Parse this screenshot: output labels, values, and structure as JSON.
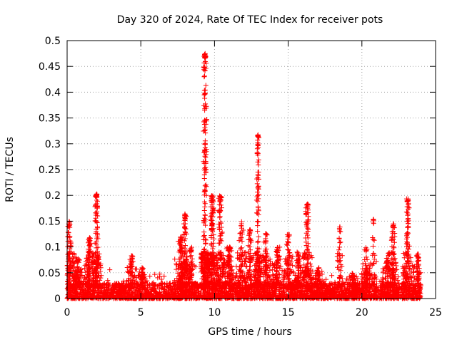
{
  "chart_data": {
    "type": "scatter",
    "title": "Day 320 of 2024, Rate Of TEC Index for receiver pots",
    "xlabel": "GPS time / hours",
    "ylabel": "ROTI / TECUs",
    "xlim": [
      0,
      25
    ],
    "ylim": [
      0,
      0.5
    ],
    "xticks": [
      0,
      5,
      10,
      15,
      20,
      25
    ],
    "xtick_labels": [
      "0",
      "5",
      "10",
      "15",
      "20",
      "25"
    ],
    "yticks": [
      0,
      0.05,
      0.1,
      0.15,
      0.2,
      0.25,
      0.3,
      0.35,
      0.4,
      0.45,
      0.5
    ],
    "ytick_labels": [
      "0",
      "0.05",
      "0.1",
      "0.15",
      "0.2",
      "0.25",
      "0.3",
      "0.35",
      "0.4",
      "0.45",
      "0.5"
    ],
    "grid": true,
    "marker": "+",
    "color": "#ff0000",
    "data_x_range": [
      0,
      24
    ],
    "background_band": {
      "min": 0.0,
      "max": 0.03
    },
    "bursts": [
      {
        "t": 0.15,
        "w": 0.35,
        "peak": 0.15,
        "n": 60
      },
      {
        "t": 0.7,
        "w": 0.3,
        "peak": 0.08,
        "n": 40
      },
      {
        "t": 1.5,
        "w": 0.3,
        "peak": 0.12,
        "n": 50
      },
      {
        "t": 2.0,
        "w": 0.3,
        "peak": 0.205,
        "n": 70
      },
      {
        "t": 4.4,
        "w": 0.3,
        "peak": 0.085,
        "n": 30
      },
      {
        "t": 5.1,
        "w": 0.3,
        "peak": 0.06,
        "n": 25
      },
      {
        "t": 7.7,
        "w": 0.4,
        "peak": 0.12,
        "n": 50
      },
      {
        "t": 8.0,
        "w": 0.3,
        "peak": 0.165,
        "n": 45
      },
      {
        "t": 8.4,
        "w": 0.3,
        "peak": 0.1,
        "n": 30
      },
      {
        "t": 9.35,
        "w": 0.25,
        "peak": 0.475,
        "n": 130
      },
      {
        "t": 9.85,
        "w": 0.3,
        "peak": 0.2,
        "n": 80
      },
      {
        "t": 10.4,
        "w": 0.3,
        "peak": 0.2,
        "n": 60
      },
      {
        "t": 11.0,
        "w": 0.4,
        "peak": 0.1,
        "n": 50
      },
      {
        "t": 11.8,
        "w": 0.3,
        "peak": 0.15,
        "n": 40
      },
      {
        "t": 12.4,
        "w": 0.3,
        "peak": 0.135,
        "n": 40
      },
      {
        "t": 12.95,
        "w": 0.2,
        "peak": 0.32,
        "n": 80
      },
      {
        "t": 13.5,
        "w": 0.3,
        "peak": 0.13,
        "n": 40
      },
      {
        "t": 14.3,
        "w": 0.4,
        "peak": 0.1,
        "n": 40
      },
      {
        "t": 15.0,
        "w": 0.3,
        "peak": 0.125,
        "n": 40
      },
      {
        "t": 15.7,
        "w": 0.3,
        "peak": 0.09,
        "n": 30
      },
      {
        "t": 16.3,
        "w": 0.3,
        "peak": 0.185,
        "n": 60
      },
      {
        "t": 17.0,
        "w": 0.3,
        "peak": 0.06,
        "n": 25
      },
      {
        "t": 18.5,
        "w": 0.2,
        "peak": 0.14,
        "n": 20
      },
      {
        "t": 19.4,
        "w": 0.3,
        "peak": 0.05,
        "n": 20
      },
      {
        "t": 20.3,
        "w": 0.3,
        "peak": 0.1,
        "n": 35
      },
      {
        "t": 20.8,
        "w": 0.2,
        "peak": 0.155,
        "n": 15
      },
      {
        "t": 21.7,
        "w": 0.3,
        "peak": 0.08,
        "n": 30
      },
      {
        "t": 22.1,
        "w": 0.3,
        "peak": 0.145,
        "n": 50
      },
      {
        "t": 23.1,
        "w": 0.3,
        "peak": 0.195,
        "n": 60
      },
      {
        "t": 23.8,
        "w": 0.3,
        "peak": 0.09,
        "n": 30
      }
    ]
  }
}
